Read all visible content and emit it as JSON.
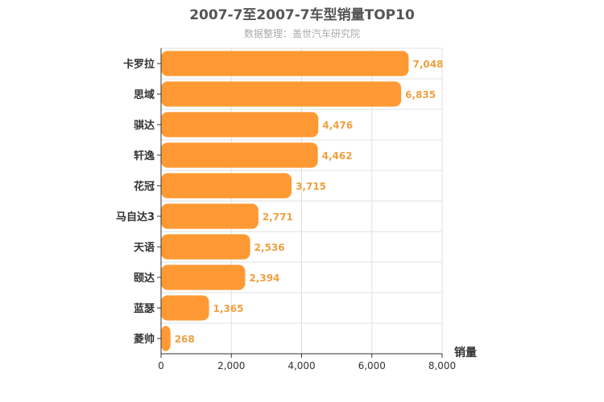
{
  "chart_data": {
    "type": "bar",
    "orientation": "horizontal",
    "title": "2007-7至2007-7车型销量TOP10",
    "subtitle": "数据整理：盖世汽车研究院",
    "xlabel": "销量",
    "ylabel": "",
    "xlim": [
      0,
      8000
    ],
    "x_ticks": [
      "0",
      "2,000",
      "4,000",
      "6,000",
      "8,000"
    ],
    "grid": true,
    "legend": "none",
    "bar_color": "#ff9933",
    "label_color": "#f0a040",
    "categories": [
      "卡罗拉",
      "思域",
      "骐达",
      "轩逸",
      "花冠",
      "马自达3",
      "天语",
      "颐达",
      "蓝瑟",
      "菱帅"
    ],
    "values": [
      7048,
      6835,
      4476,
      4462,
      3715,
      2771,
      2536,
      2394,
      1365,
      268
    ],
    "value_labels": [
      "7,048",
      "6,835",
      "4,476",
      "4,462",
      "3,715",
      "2,771",
      "2,536",
      "2,394",
      "1,365",
      "268"
    ]
  }
}
